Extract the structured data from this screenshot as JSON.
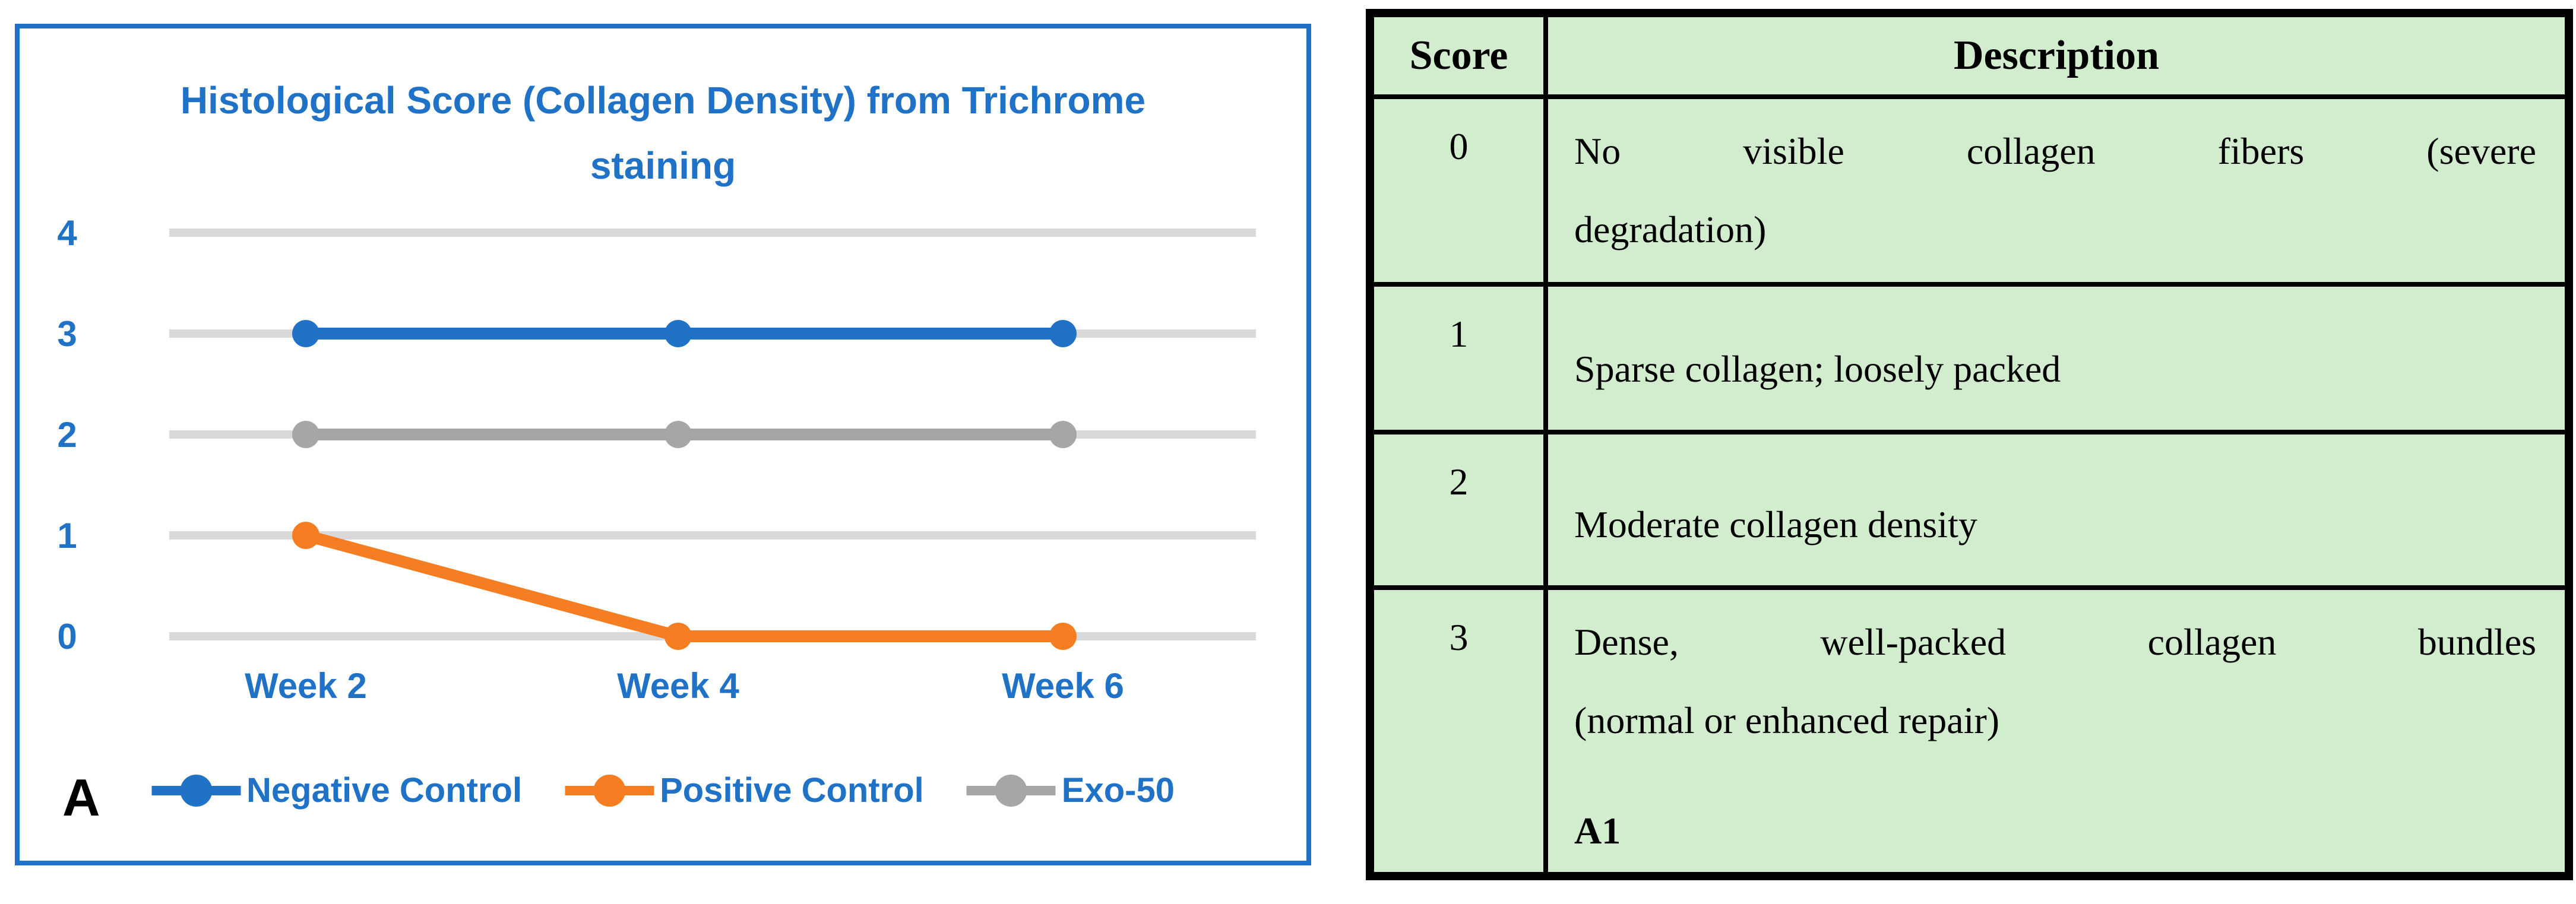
{
  "panel_label": "A",
  "chart": {
    "title_lines": [
      "Histological Score (Collagen Density) from Trichrome",
      "staining"
    ]
  },
  "chart_data": {
    "type": "line",
    "title": "Histological Score (Collagen Density) from Trichrome staining",
    "categories": [
      "Week 2",
      "Week 4",
      "Week 6"
    ],
    "series": [
      {
        "name": "Negative Control",
        "values": [
          3,
          3,
          3
        ],
        "color": "#1F72C6"
      },
      {
        "name": "Positive Control",
        "values": [
          1,
          0,
          0
        ],
        "color": "#F57E22"
      },
      {
        "name": "Exo-50",
        "values": [
          2,
          2,
          2
        ],
        "color": "#A6A6A6"
      }
    ],
    "xlabel": "",
    "ylabel": "",
    "ylim": [
      0,
      4
    ],
    "yticks": [
      0,
      1,
      2,
      3,
      4
    ],
    "grid": true,
    "legend_position": "bottom",
    "marker": "circle"
  },
  "table": {
    "headers": [
      "Score",
      "Description"
    ],
    "rows": [
      {
        "score": "0",
        "lines": [
          "No visible collagen fibers (severe",
          "degradation)"
        ],
        "justify": true,
        "valign": "top"
      },
      {
        "score": "1",
        "lines": [
          "Sparse collagen; loosely packed"
        ],
        "justify": false,
        "valign": "bottom"
      },
      {
        "score": "2",
        "lines": [
          "Moderate collagen density"
        ],
        "justify": false,
        "valign": "bottom"
      },
      {
        "score": "3",
        "lines": [
          "Dense, well-packed collagen bundles",
          "(normal or enhanced repair)"
        ],
        "justify": true,
        "valign": "top",
        "footer": "A1"
      }
    ]
  },
  "colors": {
    "accent_blue": "#1F72C6",
    "orange": "#F57E22",
    "gray": "#A6A6A6",
    "gridline": "#D9D9D9",
    "chart_border": "#1F72C6",
    "table_background": "#D2ECCE",
    "table_border": "#000000",
    "text_black": "#000000"
  }
}
